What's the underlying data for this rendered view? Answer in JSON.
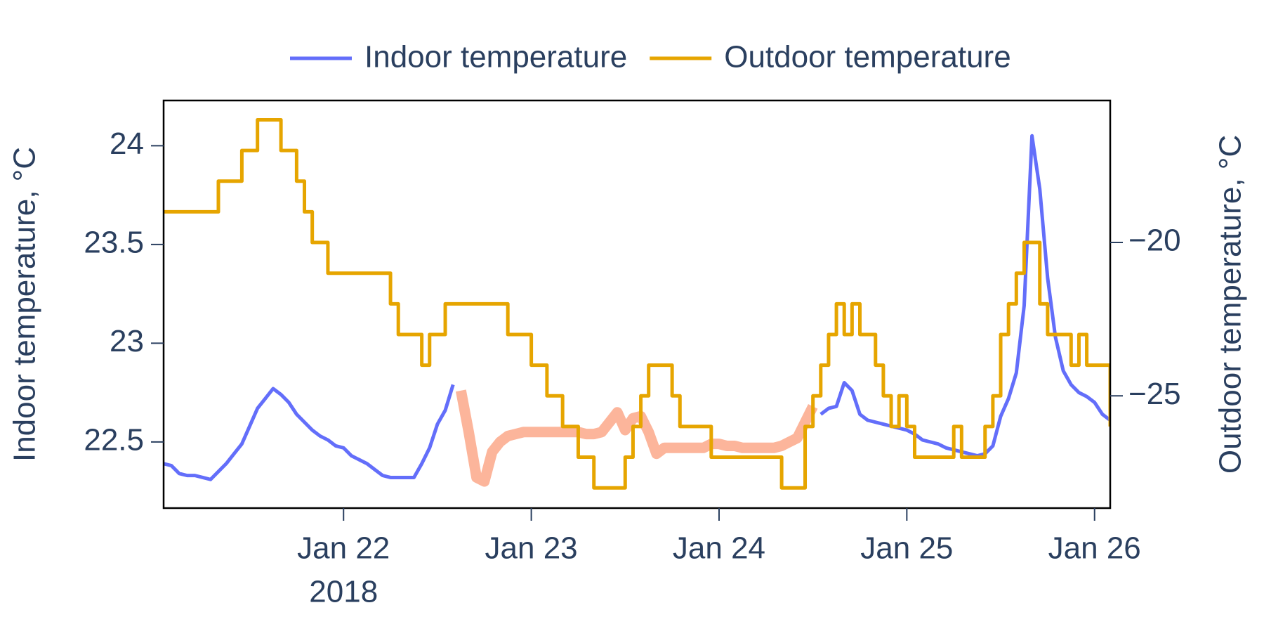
{
  "chart_data": {
    "type": "line",
    "x": [
      "2018-01-21 01:00",
      "2018-01-21 02:00",
      "2018-01-21 03:00",
      "2018-01-21 04:00",
      "2018-01-21 05:00",
      "2018-01-21 06:00",
      "2018-01-21 07:00",
      "2018-01-21 08:00",
      "2018-01-21 09:00",
      "2018-01-21 10:00",
      "2018-01-21 11:00",
      "2018-01-21 12:00",
      "2018-01-21 13:00",
      "2018-01-21 14:00",
      "2018-01-21 15:00",
      "2018-01-21 16:00",
      "2018-01-21 17:00",
      "2018-01-21 18:00",
      "2018-01-21 19:00",
      "2018-01-21 20:00",
      "2018-01-21 21:00",
      "2018-01-21 22:00",
      "2018-01-21 23:00",
      "2018-01-22 00:00",
      "2018-01-22 01:00",
      "2018-01-22 02:00",
      "2018-01-22 03:00",
      "2018-01-22 04:00",
      "2018-01-22 05:00",
      "2018-01-22 06:00",
      "2018-01-22 07:00",
      "2018-01-22 08:00",
      "2018-01-22 09:00",
      "2018-01-22 10:00",
      "2018-01-22 11:00",
      "2018-01-22 12:00",
      "2018-01-22 13:00",
      "2018-01-22 14:00",
      "2018-01-22 15:00",
      "2018-01-22 16:00",
      "2018-01-22 17:00",
      "2018-01-22 18:00",
      "2018-01-22 19:00",
      "2018-01-22 20:00",
      "2018-01-22 21:00",
      "2018-01-22 22:00",
      "2018-01-22 23:00",
      "2018-01-23 00:00",
      "2018-01-23 01:00",
      "2018-01-23 02:00",
      "2018-01-23 03:00",
      "2018-01-23 04:00",
      "2018-01-23 05:00",
      "2018-01-23 06:00",
      "2018-01-23 07:00",
      "2018-01-23 08:00",
      "2018-01-23 09:00",
      "2018-01-23 10:00",
      "2018-01-23 11:00",
      "2018-01-23 12:00",
      "2018-01-23 13:00",
      "2018-01-23 14:00",
      "2018-01-23 15:00",
      "2018-01-23 16:00",
      "2018-01-23 17:00",
      "2018-01-23 18:00",
      "2018-01-23 19:00",
      "2018-01-23 20:00",
      "2018-01-23 21:00",
      "2018-01-23 22:00",
      "2018-01-23 23:00",
      "2018-01-24 00:00",
      "2018-01-24 01:00",
      "2018-01-24 02:00",
      "2018-01-24 03:00",
      "2018-01-24 04:00",
      "2018-01-24 05:00",
      "2018-01-24 06:00",
      "2018-01-24 07:00",
      "2018-01-24 08:00",
      "2018-01-24 09:00",
      "2018-01-24 10:00",
      "2018-01-24 11:00",
      "2018-01-24 12:00",
      "2018-01-24 13:00",
      "2018-01-24 14:00",
      "2018-01-24 15:00",
      "2018-01-24 16:00",
      "2018-01-24 17:00",
      "2018-01-24 18:00",
      "2018-01-24 19:00",
      "2018-01-24 20:00",
      "2018-01-24 21:00",
      "2018-01-24 22:00",
      "2018-01-24 23:00",
      "2018-01-25 00:00",
      "2018-01-25 01:00",
      "2018-01-25 02:00",
      "2018-01-25 03:00",
      "2018-01-25 04:00",
      "2018-01-25 05:00",
      "2018-01-25 06:00",
      "2018-01-25 07:00",
      "2018-01-25 08:00",
      "2018-01-25 09:00",
      "2018-01-25 10:00",
      "2018-01-25 11:00",
      "2018-01-25 12:00",
      "2018-01-25 13:00",
      "2018-01-25 14:00",
      "2018-01-25 15:00",
      "2018-01-25 16:00",
      "2018-01-25 17:00",
      "2018-01-25 18:00",
      "2018-01-25 19:00",
      "2018-01-25 20:00",
      "2018-01-25 21:00",
      "2018-01-25 22:00",
      "2018-01-25 23:00",
      "2018-01-26 00:00",
      "2018-01-26 01:00",
      "2018-01-26 02:00"
    ],
    "series": [
      {
        "name": "Indoor temperature",
        "color": "#636efa",
        "axis": "y",
        "shape": "linear",
        "width": 5,
        "values": [
          22.39,
          22.38,
          22.34,
          22.33,
          22.33,
          22.32,
          22.31,
          22.35,
          22.39,
          22.44,
          22.49,
          22.58,
          22.67,
          22.72,
          22.77,
          22.74,
          22.7,
          22.64,
          22.6,
          22.56,
          22.53,
          22.51,
          22.48,
          22.47,
          22.43,
          22.41,
          22.39,
          22.36,
          22.33,
          22.32,
          22.32,
          22.32,
          22.32,
          22.39,
          22.47,
          22.59,
          22.66,
          22.79,
          null,
          null,
          null,
          null,
          null,
          null,
          null,
          null,
          null,
          null,
          null,
          null,
          null,
          null,
          null,
          null,
          null,
          null,
          null,
          null,
          null,
          null,
          null,
          null,
          null,
          null,
          null,
          null,
          null,
          null,
          null,
          null,
          null,
          null,
          null,
          null,
          null,
          null,
          null,
          null,
          null,
          null,
          null,
          null,
          null,
          null,
          22.64,
          22.67,
          22.68,
          22.8,
          22.76,
          22.64,
          22.61,
          22.6,
          22.59,
          22.58,
          22.57,
          22.56,
          22.54,
          22.51,
          22.5,
          22.49,
          22.47,
          22.46,
          22.45,
          22.44,
          22.43,
          22.44,
          22.48,
          22.63,
          22.72,
          22.85,
          23.19,
          24.05,
          23.78,
          23.33,
          23.03,
          22.86,
          22.79,
          22.75,
          22.73,
          22.7,
          22.64,
          22.61
        ]
      },
      {
        "color": "#fcb59b",
        "axis": "y",
        "shape": "linear",
        "width": 15,
        "values": [
          null,
          null,
          null,
          null,
          null,
          null,
          null,
          null,
          null,
          null,
          null,
          null,
          null,
          null,
          null,
          null,
          null,
          null,
          null,
          null,
          null,
          null,
          null,
          null,
          null,
          null,
          null,
          null,
          null,
          null,
          null,
          null,
          null,
          null,
          null,
          null,
          null,
          null,
          22.76,
          22.55,
          22.32,
          22.3,
          22.45,
          22.5,
          22.53,
          22.54,
          22.55,
          22.55,
          22.55,
          22.55,
          22.55,
          22.55,
          22.55,
          22.55,
          22.54,
          22.54,
          22.55,
          22.6,
          22.65,
          22.56,
          22.62,
          22.63,
          22.55,
          22.44,
          22.47,
          22.47,
          22.47,
          22.47,
          22.47,
          22.47,
          22.49,
          22.49,
          22.48,
          22.48,
          22.47,
          22.47,
          22.47,
          22.47,
          22.47,
          22.48,
          22.5,
          22.52,
          22.6,
          22.68,
          null,
          null,
          null,
          null,
          null,
          null,
          null,
          null,
          null,
          null,
          null,
          null,
          null,
          null,
          null,
          null,
          null,
          null,
          null,
          null,
          null,
          null,
          null,
          null,
          null,
          null,
          null,
          null,
          null,
          null,
          null,
          null,
          null,
          null,
          null,
          null,
          null,
          null
        ]
      },
      {
        "name": "Outdoor temperature",
        "color": "#e6a500",
        "axis": "y2",
        "shape": "hv",
        "width": 5,
        "values": [
          -19,
          -19,
          -19,
          -19,
          -19,
          -19,
          -19,
          -18,
          -18,
          -18,
          -17,
          -17,
          -16,
          -16,
          -16,
          -17,
          -17,
          -18,
          -19,
          -20,
          -20,
          -21,
          -21,
          -21,
          -21,
          -21,
          -21,
          -21,
          -21,
          -22,
          -23,
          -23,
          -23,
          -24,
          -23,
          -23,
          -22,
          -22,
          -22,
          -22,
          -22,
          -22,
          -22,
          -22,
          -23,
          -23,
          -23,
          -24,
          -24,
          -25,
          -25,
          -26,
          -26,
          -27,
          -27,
          -28,
          -28,
          -28,
          -28,
          -27,
          -26,
          -25,
          -24,
          -24,
          -24,
          -25,
          -26,
          -26,
          -26,
          -26,
          -27,
          -27,
          -27,
          -27,
          -27,
          -27,
          -27,
          -27,
          -27,
          -28,
          -28,
          -28,
          -26,
          -25,
          -24,
          -23,
          -22,
          -23,
          -22,
          -23,
          -23,
          -24,
          -25,
          -26,
          -25,
          -26,
          -27,
          -27,
          -27,
          -27,
          -27,
          -26,
          -27,
          -27,
          -27,
          -26,
          -25,
          -23,
          -22,
          -21,
          -20,
          -20,
          -22,
          -23,
          -23,
          -23,
          -24,
          -23,
          -24,
          -24,
          -24,
          -26
        ]
      }
    ],
    "xlim": [
      "2018-01-21 01:00",
      "2018-01-26 02:00"
    ],
    "xticks": [
      {
        "value": "2018-01-22 00:00",
        "label": "Jan 22",
        "sublabel": "2018"
      },
      {
        "value": "2018-01-23 00:00",
        "label": "Jan 23"
      },
      {
        "value": "2018-01-24 00:00",
        "label": "Jan 24"
      },
      {
        "value": "2018-01-25 00:00",
        "label": "Jan 25"
      },
      {
        "value": "2018-01-26 00:00",
        "label": "Jan 26"
      }
    ],
    "ylim": [
      22.165,
      24.229
    ],
    "yticks": [
      22.5,
      23,
      23.5,
      24
    ],
    "y2lim": [
      -28.66,
      -15.37
    ],
    "y2ticks": [
      {
        "value": -25,
        "label": "−25"
      },
      {
        "value": -20,
        "label": "−20"
      }
    ],
    "ylabel": "Indoor temperature, °C",
    "y2label": "Outdoor temperature, °C",
    "legend": "top",
    "grid": false
  }
}
